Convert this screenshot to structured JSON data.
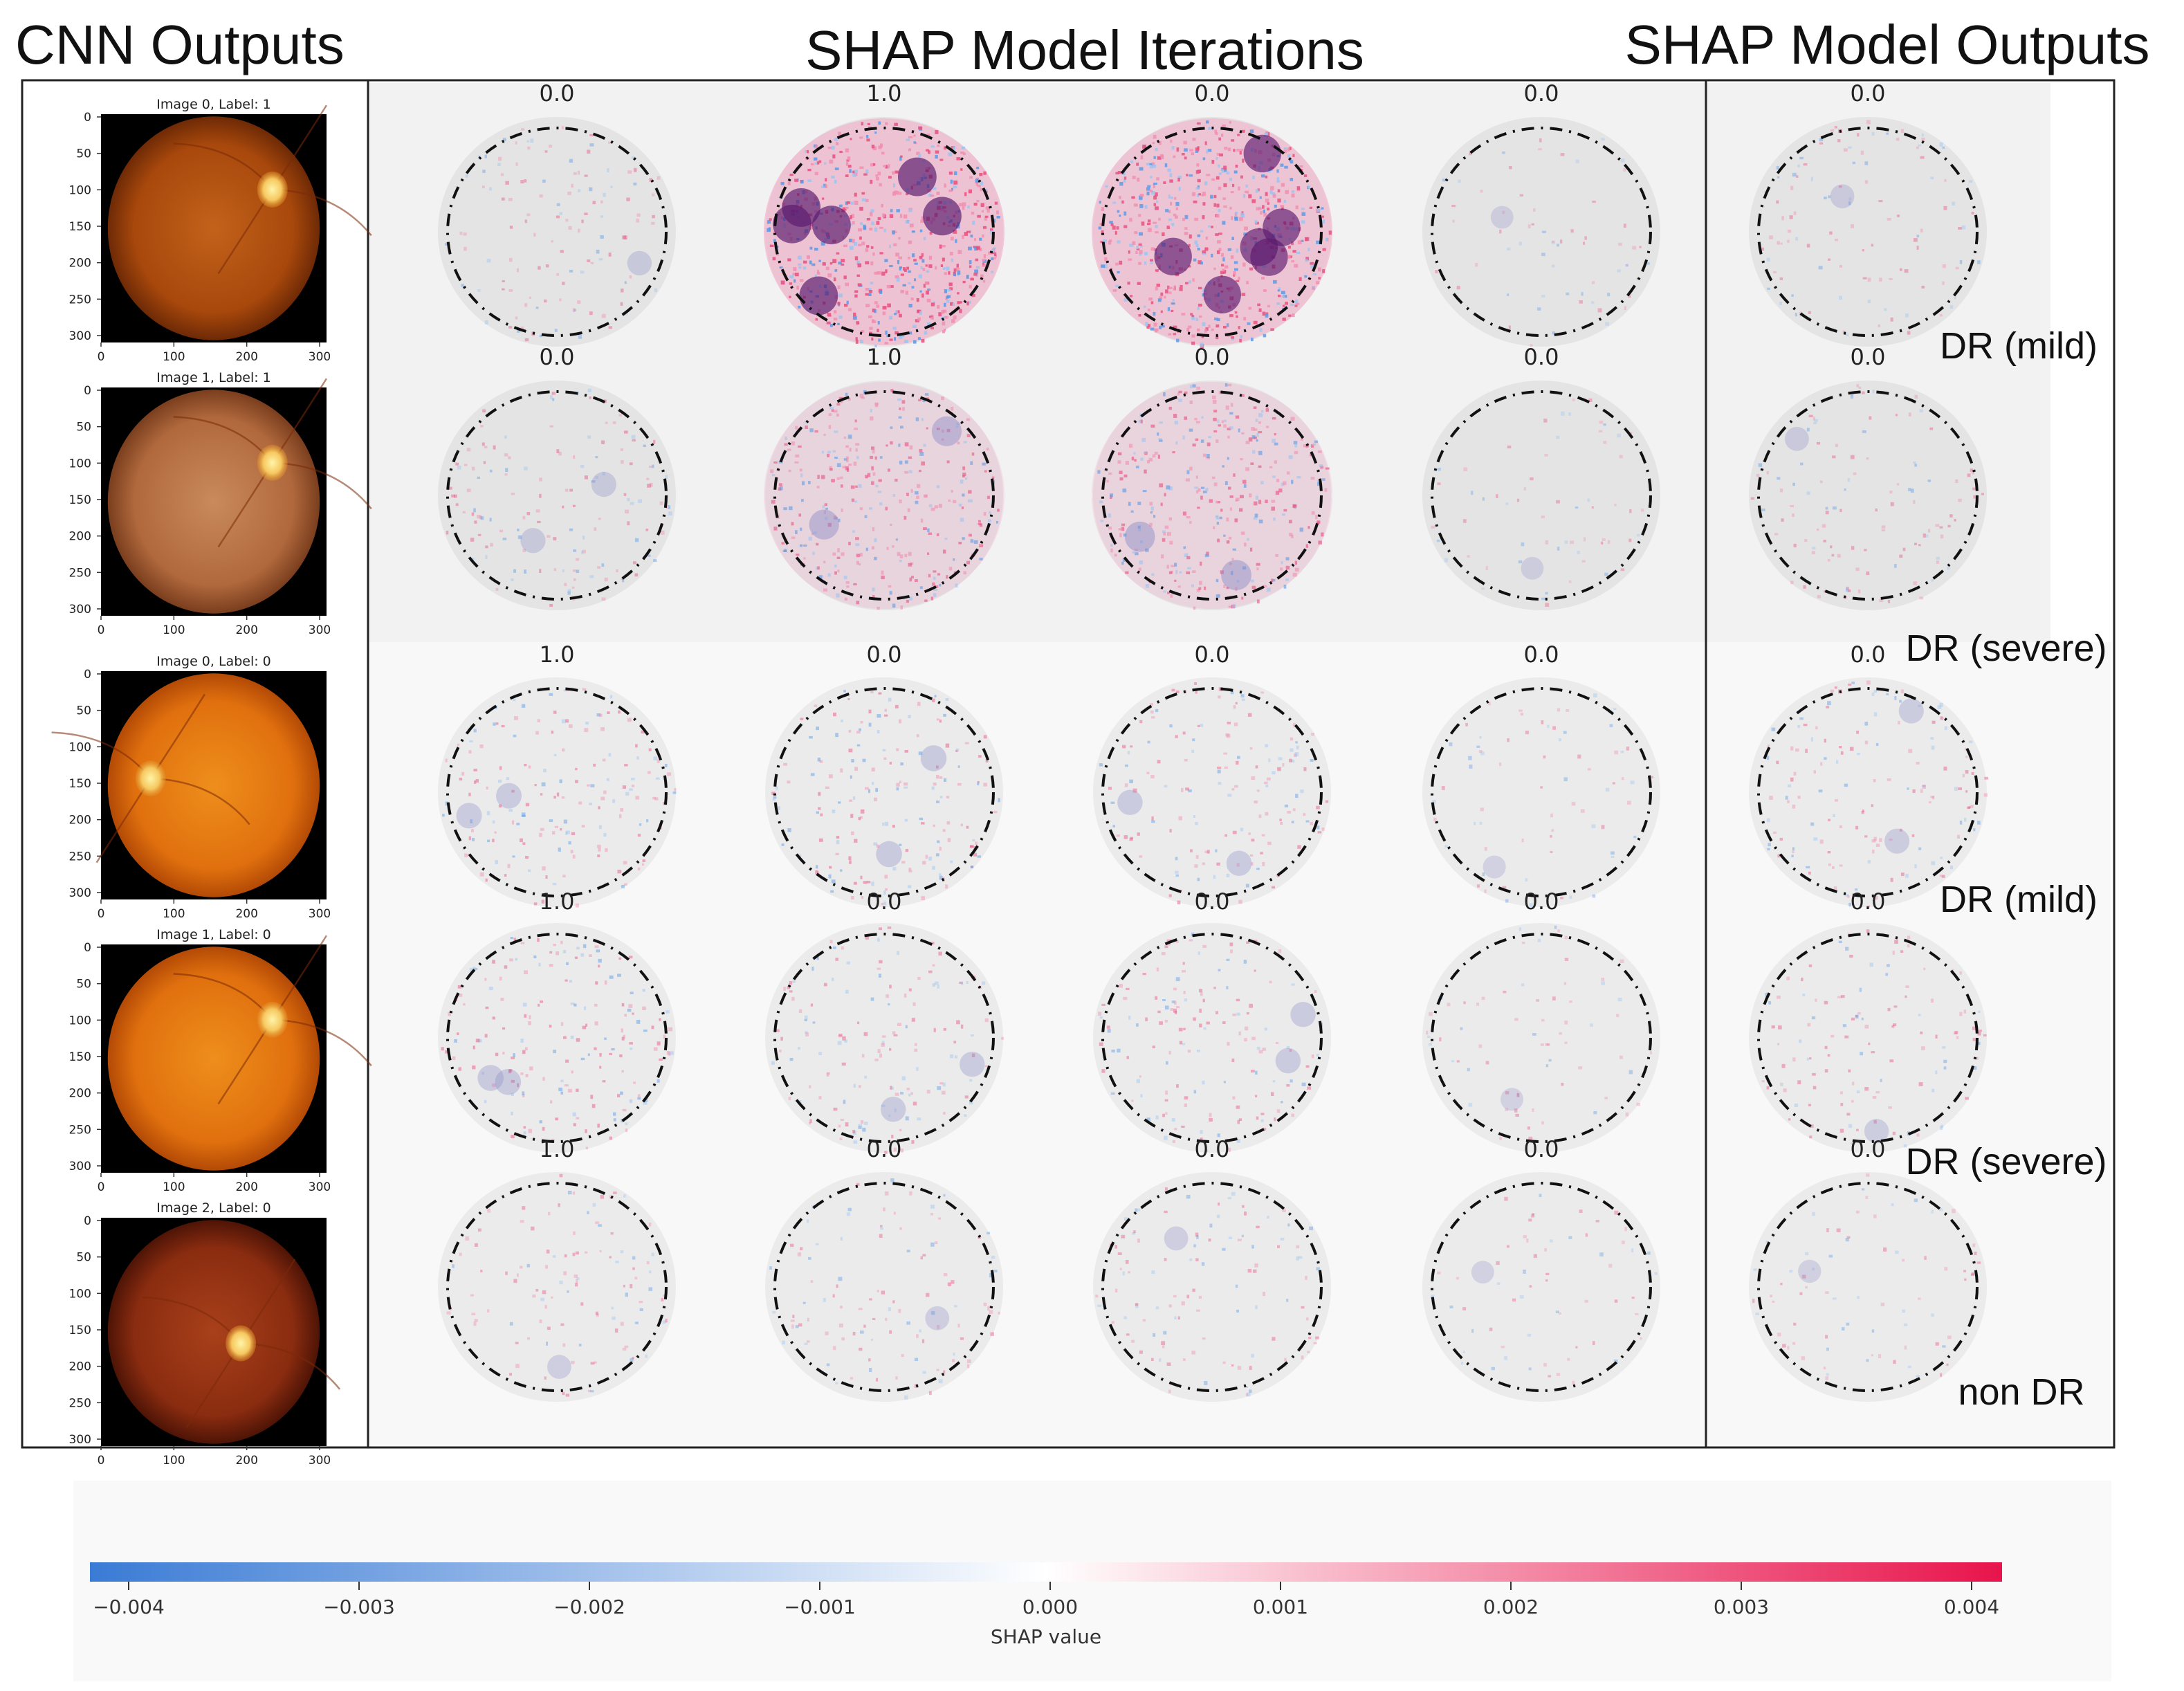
{
  "headers": {
    "cnn": "CNN Outputs",
    "iterations": "SHAP Model Iterations",
    "outputs": "SHAP Model Outputs"
  },
  "colors": {
    "negative": "#3a7bd5",
    "neutral": "#ffffff",
    "positive": "#e8144c"
  },
  "fundus_axis": {
    "y_ticks": [
      "0",
      "50",
      "100",
      "150",
      "200",
      "250",
      "300"
    ],
    "x_ticks": [
      "0",
      "100",
      "200",
      "300"
    ]
  },
  "fundus_images": [
    {
      "title": "Image 0, Label: 1",
      "tone": "dark-orange",
      "disc_side": "right"
    },
    {
      "title": "Image 1, Label: 1",
      "tone": "pale-brown",
      "disc_side": "right"
    },
    {
      "title": "Image 0, Label: 0",
      "tone": "bright-orange",
      "disc_side": "left"
    },
    {
      "title": "Image 1, Label: 0",
      "tone": "bright-orange",
      "disc_side": "right"
    },
    {
      "title": "Image 2, Label: 0",
      "tone": "dark-red",
      "disc_side": "center-right"
    }
  ],
  "shap_rows": [
    {
      "values": [
        "0.0",
        "1.0",
        "0.0",
        "0.0",
        "0.0"
      ],
      "label": "DR (mild)",
      "intensity": [
        0.12,
        0.85,
        0.8,
        0.03,
        0.1
      ]
    },
    {
      "values": [
        "0.0",
        "1.0",
        "0.0",
        "0.0",
        "0.0"
      ],
      "label": "DR (severe)",
      "intensity": [
        0.15,
        0.4,
        0.42,
        0.03,
        0.1
      ]
    },
    {
      "values": [
        "1.0",
        "0.0",
        "0.0",
        "0.0",
        "0.0"
      ],
      "label": "DR (mild)",
      "intensity": [
        0.18,
        0.2,
        0.16,
        0.04,
        0.15
      ]
    },
    {
      "values": [
        "1.0",
        "0.0",
        "0.0",
        "0.0",
        "0.0"
      ],
      "label": "DR (severe)",
      "intensity": [
        0.2,
        0.16,
        0.16,
        0.04,
        0.12
      ]
    },
    {
      "values": [
        "1.0",
        "0.0",
        "0.0",
        "0.0",
        "0.0"
      ],
      "label": "non DR",
      "intensity": [
        0.1,
        0.1,
        0.1,
        0.03,
        0.05
      ]
    }
  ],
  "colorbar": {
    "ticks": [
      "−0.004",
      "−0.003",
      "−0.002",
      "−0.001",
      "0.000",
      "0.001",
      "0.002",
      "0.003",
      "0.004"
    ],
    "label": "SHAP value"
  }
}
